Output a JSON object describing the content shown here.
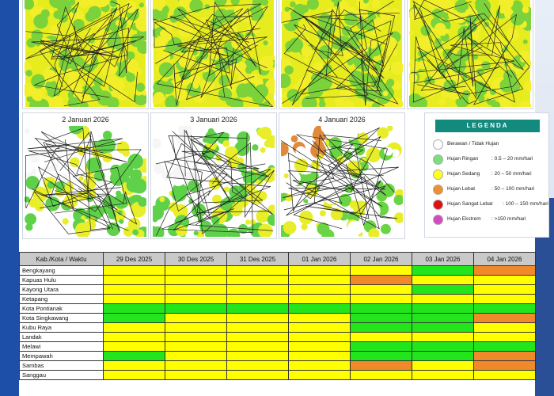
{
  "maps": [
    {
      "label": "",
      "variant": "yellow"
    },
    {
      "label": "",
      "variant": "yellow"
    },
    {
      "label": "",
      "variant": "yellow"
    },
    {
      "label": "",
      "variant": "yellow"
    },
    {
      "label": "2 Januari 2026",
      "variant": "white"
    },
    {
      "label": "3 Januari 2026",
      "variant": "white"
    },
    {
      "label": "4 Januari 2026",
      "variant": "mixed"
    }
  ],
  "legend": {
    "title": "LEGENDA",
    "items": [
      {
        "label": "Berawan / Tidak Hujan",
        "range": "",
        "color": "#ffffff"
      },
      {
        "label": "Hujan Ringan",
        "range": ": 0.5 – 20 mm/hari",
        "color": "#7be07b"
      },
      {
        "label": "Hujan Sedang",
        "range": ": 20 – 50 mm/hari",
        "color": "#ffff22"
      },
      {
        "label": "Hujan Lebat",
        "range": ": 50 – 100 mm/hari",
        "color": "#f0902c"
      },
      {
        "label": "Hujan Sangat Lebat",
        "range": ": 100 – 150 mm/hari",
        "color": "#e01010"
      },
      {
        "label": "Hujan Ekstrem",
        "range": ": >150 mm/hari",
        "color": "#d64ac0"
      }
    ]
  },
  "table": {
    "headers": [
      "Kab./Kota / Waktu",
      "29 Des 2025",
      "30 Des 2025",
      "31 Des 2025",
      "01 Jan 2026",
      "02 Jan 2026",
      "03 Jan 2026",
      "04 Jan 2026"
    ],
    "rows": [
      {
        "name": "Bengkayang",
        "cells": [
          "yellow",
          "yellow",
          "yellow",
          "yellow",
          "yellow",
          "green",
          "orange"
        ]
      },
      {
        "name": "Kapuas Hulu",
        "cells": [
          "yellow",
          "yellow",
          "yellow",
          "yellow",
          "orange",
          "yellow",
          "yellow"
        ]
      },
      {
        "name": "Kayong Utara",
        "cells": [
          "yellow",
          "yellow",
          "yellow",
          "yellow",
          "yellow",
          "green",
          "yellow"
        ]
      },
      {
        "name": "Ketapang",
        "cells": [
          "yellow",
          "yellow",
          "yellow",
          "yellow",
          "yellow",
          "yellow",
          "yellow"
        ]
      },
      {
        "name": "Kota Pontianak",
        "cells": [
          "green",
          "green",
          "green",
          "green",
          "green",
          "green",
          "green"
        ]
      },
      {
        "name": "Kota Singkawang",
        "cells": [
          "green",
          "yellow",
          "yellow",
          "yellow",
          "green",
          "green",
          "orange"
        ]
      },
      {
        "name": "Kubu Raya",
        "cells": [
          "yellow",
          "yellow",
          "yellow",
          "yellow",
          "green",
          "green",
          "yellow"
        ]
      },
      {
        "name": "Landak",
        "cells": [
          "yellow",
          "yellow",
          "yellow",
          "yellow",
          "yellow",
          "yellow",
          "yellow"
        ]
      },
      {
        "name": "Melawi",
        "cells": [
          "yellow",
          "yellow",
          "yellow",
          "yellow",
          "green",
          "green",
          "green"
        ]
      },
      {
        "name": "Mempawah",
        "cells": [
          "green",
          "yellow",
          "yellow",
          "yellow",
          "green",
          "green",
          "orange"
        ]
      },
      {
        "name": "Sambas",
        "cells": [
          "yellow",
          "yellow",
          "yellow",
          "yellow",
          "orange",
          "yellow",
          "orange"
        ]
      },
      {
        "name": "Sanggau",
        "cells": [
          "yellow",
          "yellow",
          "yellow",
          "yellow",
          "yellow",
          "yellow",
          "yellow"
        ]
      }
    ]
  }
}
